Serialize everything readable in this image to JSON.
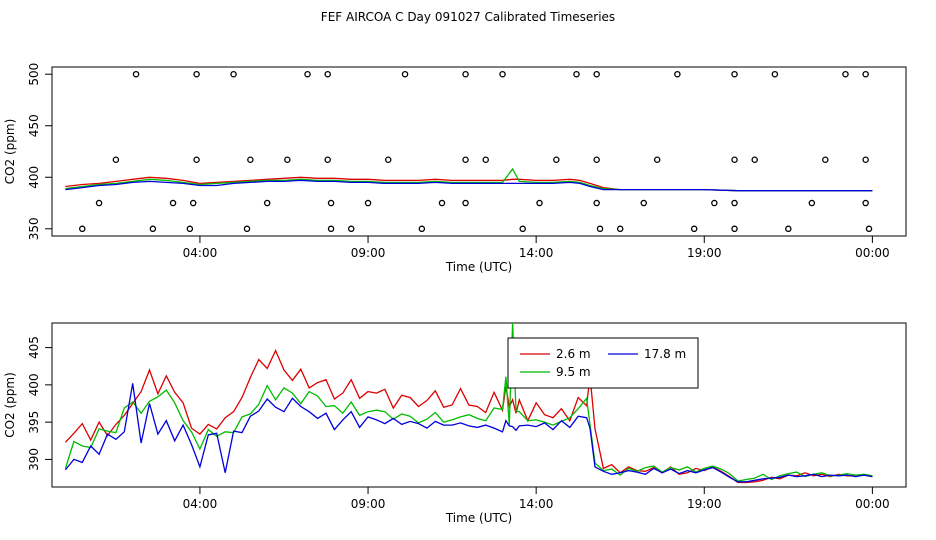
{
  "title": "FEF AIRCOA C  Day 091027  Calibrated Timeseries",
  "colors": {
    "s1": "#dd0000",
    "s2": "#00bb00",
    "s3": "#0000dd",
    "axis": "#000000"
  },
  "chart_data": [
    {
      "type": "line+scatter",
      "xlabel": "Time (UTC)",
      "ylabel": "CO2 (ppm)",
      "xticks": [
        {
          "t": 4,
          "label": "04:00"
        },
        {
          "t": 9,
          "label": "09:00"
        },
        {
          "t": 14,
          "label": "14:00"
        },
        {
          "t": 19,
          "label": "19:00"
        },
        {
          "t": 24,
          "label": "00:00"
        }
      ],
      "yticks": [
        350,
        400,
        450,
        500
      ],
      "ylim": [
        343,
        507
      ],
      "xlim": [
        -0.4,
        25.0
      ],
      "series": [
        {
          "color_key": "s1",
          "x": [
            0,
            0.5,
            1,
            1.5,
            2,
            2.5,
            3,
            3.5,
            4,
            4.5,
            5,
            5.5,
            6,
            6.5,
            7,
            7.5,
            8,
            8.5,
            9,
            9.5,
            10,
            10.5,
            11,
            11.5,
            12,
            12.5,
            13,
            13.3,
            13.5,
            14,
            14.5,
            15,
            15.3,
            15.6,
            16,
            16.5,
            17,
            18,
            19,
            20,
            21,
            22,
            23,
            24
          ],
          "y": [
            391,
            393,
            394,
            396,
            398,
            400,
            399,
            397,
            394,
            395,
            396,
            397,
            398,
            399,
            400,
            399,
            399,
            398,
            398,
            397,
            397,
            397,
            398,
            397,
            397,
            397,
            397,
            398,
            398,
            397,
            397,
            398,
            397,
            394,
            390,
            388,
            388,
            388,
            388,
            387,
            387,
            387,
            387,
            387
          ]
        },
        {
          "color_key": "s2",
          "x": [
            0,
            0.5,
            1,
            1.5,
            2,
            2.5,
            3,
            3.5,
            4,
            4.5,
            5,
            5.5,
            6,
            6.5,
            7,
            7.5,
            8,
            8.5,
            9,
            9.5,
            10,
            10.5,
            11,
            11.5,
            12,
            12.5,
            13,
            13.3,
            13.5,
            14,
            14.5,
            15,
            15.3,
            15.6,
            16,
            16.5,
            17,
            18,
            19,
            20,
            21,
            22,
            23,
            24
          ],
          "y": [
            389,
            391,
            393,
            394,
            396,
            398,
            397,
            395,
            393,
            394,
            395,
            396,
            397,
            397,
            398,
            397,
            397,
            396,
            396,
            395,
            395,
            395,
            396,
            395,
            395,
            395,
            395,
            408,
            396,
            395,
            395,
            396,
            395,
            392,
            389,
            388,
            388,
            388,
            388,
            387,
            387,
            387,
            387,
            387
          ]
        },
        {
          "color_key": "s3",
          "x": [
            0,
            0.5,
            1,
            1.5,
            2,
            2.5,
            3,
            3.5,
            4,
            4.5,
            5,
            5.5,
            6,
            6.5,
            7,
            7.5,
            8,
            8.5,
            9,
            9.5,
            10,
            10.5,
            11,
            11.5,
            12,
            12.5,
            13,
            13.3,
            13.5,
            14,
            14.5,
            15,
            15.3,
            15.6,
            16,
            16.5,
            17,
            18,
            19,
            20,
            21,
            22,
            23,
            24
          ],
          "y": [
            388,
            390,
            392,
            393,
            395,
            396,
            395,
            394,
            392,
            392,
            394,
            395,
            396,
            396,
            397,
            396,
            396,
            395,
            395,
            394,
            394,
            394,
            395,
            394,
            394,
            394,
            394,
            394,
            394,
            394,
            394,
            395,
            394,
            391,
            388,
            388,
            388,
            388,
            388,
            387,
            387,
            387,
            387,
            387
          ]
        }
      ],
      "points": {
        "x": [
          2.1,
          3.9,
          5.0,
          7.2,
          7.8,
          10.1,
          11.9,
          13.0,
          15.2,
          15.8,
          18.2,
          19.9,
          21.1,
          23.2,
          23.8,
          1.5,
          3.9,
          5.5,
          6.6,
          7.8,
          9.6,
          11.9,
          12.5,
          14.6,
          15.8,
          17.6,
          19.9,
          20.5,
          22.6,
          23.8,
          1.0,
          3.2,
          3.8,
          6.0,
          7.9,
          9.0,
          11.2,
          11.9,
          14.1,
          15.8,
          17.2,
          19.3,
          19.9,
          22.2,
          23.8,
          0.5,
          2.6,
          3.7,
          5.4,
          7.9,
          8.5,
          10.6,
          13.6,
          15.9,
          16.5,
          18.7,
          19.9,
          21.5,
          23.9
        ],
        "y": [
          500,
          500,
          500,
          500,
          500,
          500,
          500,
          500,
          500,
          500,
          500,
          500,
          500,
          500,
          500,
          417,
          417,
          417,
          417,
          417,
          417,
          417,
          417,
          417,
          417,
          417,
          417,
          417,
          417,
          417,
          375,
          375,
          375,
          375,
          375,
          375,
          375,
          375,
          375,
          375,
          375,
          375,
          375,
          375,
          375,
          350,
          350,
          350,
          350,
          350,
          350,
          350,
          350,
          350,
          350,
          350,
          350,
          350,
          350
        ]
      }
    },
    {
      "type": "line",
      "xlabel": "Time (UTC)",
      "ylabel": "CO2 (ppm)",
      "xticks": [
        {
          "t": 4,
          "label": "04:00"
        },
        {
          "t": 9,
          "label": "09:00"
        },
        {
          "t": 14,
          "label": "14:00"
        },
        {
          "t": 19,
          "label": "19:00"
        },
        {
          "t": 24,
          "label": "00:00"
        }
      ],
      "yticks": [
        390,
        395,
        400,
        405
      ],
      "ylim": [
        386.3,
        408.3
      ],
      "xlim": [
        -0.4,
        25.0
      ],
      "legend": {
        "placement": "top-right-center",
        "entries": [
          {
            "label": "2.6 m",
            "color_key": "s1"
          },
          {
            "label": "9.5 m",
            "color_key": "s2"
          },
          {
            "label": "17.8 m",
            "color_key": "s3"
          }
        ]
      },
      "series": [
        {
          "name": "2.6 m",
          "color_key": "s1",
          "x": [
            0,
            0.25,
            0.5,
            0.75,
            1,
            1.25,
            1.5,
            1.75,
            2,
            2.25,
            2.5,
            2.75,
            3,
            3.25,
            3.5,
            3.75,
            4,
            4.25,
            4.5,
            4.75,
            5,
            5.25,
            5.5,
            5.75,
            6,
            6.25,
            6.5,
            6.75,
            7,
            7.25,
            7.5,
            7.75,
            8,
            8.25,
            8.5,
            8.75,
            9,
            9.25,
            9.5,
            9.75,
            10,
            10.25,
            10.5,
            10.75,
            11,
            11.25,
            11.5,
            11.75,
            12,
            12.25,
            12.5,
            12.75,
            13,
            13.1,
            13.2,
            13.3,
            13.4,
            13.5,
            13.75,
            14,
            14.25,
            14.5,
            14.75,
            15,
            15.25,
            15.5,
            15.6,
            15.75,
            16,
            16.25,
            16.5,
            16.75,
            17,
            17.25,
            17.5,
            17.75,
            18,
            18.25,
            18.5,
            18.75,
            19,
            19.25,
            19.5,
            19.75,
            20,
            20.25,
            20.5,
            20.75,
            21,
            21.25,
            21.5,
            21.75,
            22,
            22.25,
            22.5,
            22.75,
            23,
            23.25,
            23.5,
            23.75,
            24
          ],
          "y": [
            392.3,
            393.5,
            394.8,
            392.6,
            395.0,
            393.2,
            394.7,
            395.9,
            397.5,
            399.1,
            402.0,
            398.8,
            401.2,
            399.0,
            397.6,
            394.2,
            393.4,
            394.7,
            394.1,
            395.6,
            396.4,
            398.3,
            401.0,
            403.4,
            402.2,
            404.6,
            402.0,
            400.6,
            402.1,
            399.6,
            400.3,
            400.7,
            398.1,
            398.9,
            400.7,
            398.2,
            399.1,
            398.9,
            399.4,
            396.9,
            398.6,
            398.3,
            397.1,
            397.9,
            399.2,
            397.0,
            397.3,
            399.5,
            397.3,
            397.1,
            396.3,
            399.0,
            396.6,
            399.8,
            397.1,
            398.0,
            396.2,
            398.0,
            395.2,
            397.6,
            396.0,
            395.6,
            396.8,
            395.2,
            398.3,
            397.2,
            401.2,
            394.1,
            388.8,
            389.3,
            388.2,
            389.0,
            388.5,
            388.4,
            388.9,
            388.2,
            389.0,
            388.0,
            388.2,
            388.8,
            388.5,
            389.0,
            388.4,
            387.7,
            386.9,
            386.9,
            387.0,
            387.2,
            387.6,
            387.4,
            387.9,
            387.8,
            388.2,
            387.8,
            388.0,
            387.7,
            388.0,
            387.8,
            387.8,
            387.9,
            387.7
          ]
        },
        {
          "name": "9.5 m",
          "color_key": "s2",
          "x": [
            0,
            0.25,
            0.5,
            0.75,
            1,
            1.25,
            1.5,
            1.75,
            2,
            2.25,
            2.5,
            2.75,
            3,
            3.25,
            3.5,
            3.75,
            4,
            4.25,
            4.5,
            4.75,
            5,
            5.25,
            5.5,
            5.75,
            6,
            6.25,
            6.5,
            6.75,
            7,
            7.25,
            7.5,
            7.75,
            8,
            8.25,
            8.5,
            8.75,
            9,
            9.25,
            9.5,
            9.75,
            10,
            10.25,
            10.5,
            10.75,
            11,
            11.25,
            11.5,
            11.75,
            12,
            12.25,
            12.5,
            12.75,
            13,
            13.1,
            13.2,
            13.3,
            13.4,
            13.5,
            13.75,
            14,
            14.25,
            14.5,
            14.75,
            15,
            15.25,
            15.5,
            15.6,
            15.75,
            16,
            16.25,
            16.5,
            16.75,
            17,
            17.25,
            17.5,
            17.75,
            18,
            18.25,
            18.5,
            18.75,
            19,
            19.25,
            19.5,
            19.75,
            20,
            20.25,
            20.5,
            20.75,
            21,
            21.25,
            21.5,
            21.75,
            22,
            22.25,
            22.5,
            22.75,
            23,
            23.25,
            23.5,
            23.75,
            24
          ],
          "y": [
            388.8,
            392.4,
            391.8,
            391.6,
            394.1,
            393.8,
            393.6,
            396.9,
            397.7,
            396.2,
            397.8,
            398.4,
            399.3,
            397.6,
            395.2,
            393.7,
            391.4,
            394.0,
            393.1,
            393.7,
            393.6,
            395.7,
            396.1,
            397.4,
            399.9,
            398.0,
            399.6,
            398.9,
            397.5,
            399.1,
            398.5,
            397.1,
            397.2,
            396.2,
            397.7,
            395.9,
            396.4,
            396.6,
            396.4,
            395.4,
            396.1,
            395.8,
            394.9,
            395.4,
            396.3,
            395.0,
            395.3,
            395.7,
            396.0,
            395.5,
            395.2,
            396.9,
            396.7,
            401.1,
            394.6,
            408.3,
            396.5,
            396.4,
            395.2,
            395.3,
            395.0,
            394.6,
            395.1,
            395.6,
            396.8,
            398.2,
            394.7,
            389.5,
            388.5,
            388.7,
            387.9,
            388.8,
            388.4,
            388.9,
            389.1,
            388.3,
            388.9,
            388.6,
            389.0,
            388.3,
            388.8,
            389.1,
            388.7,
            388.1,
            387.1,
            387.3,
            387.5,
            388.0,
            387.3,
            387.8,
            388.1,
            388.3,
            387.7,
            388.0,
            388.2,
            387.8,
            387.9,
            388.1,
            387.9,
            388.0,
            387.8
          ]
        },
        {
          "name": "17.8 m",
          "color_key": "s3",
          "x": [
            0,
            0.25,
            0.5,
            0.75,
            1,
            1.25,
            1.5,
            1.75,
            2,
            2.25,
            2.5,
            2.75,
            3,
            3.25,
            3.5,
            3.75,
            4,
            4.25,
            4.5,
            4.75,
            5,
            5.25,
            5.5,
            5.75,
            6,
            6.25,
            6.5,
            6.75,
            7,
            7.25,
            7.5,
            7.75,
            8,
            8.25,
            8.5,
            8.75,
            9,
            9.25,
            9.5,
            9.75,
            10,
            10.25,
            10.5,
            10.75,
            11,
            11.25,
            11.5,
            11.75,
            12,
            12.25,
            12.5,
            12.75,
            13,
            13.1,
            13.2,
            13.3,
            13.4,
            13.5,
            13.75,
            14,
            14.25,
            14.5,
            14.75,
            15,
            15.25,
            15.5,
            15.6,
            15.75,
            16,
            16.25,
            16.5,
            16.75,
            17,
            17.25,
            17.5,
            17.75,
            18,
            18.25,
            18.5,
            18.75,
            19,
            19.25,
            19.5,
            19.75,
            20,
            20.25,
            20.5,
            20.75,
            21,
            21.25,
            21.5,
            21.75,
            22,
            22.25,
            22.5,
            22.75,
            23,
            23.25,
            23.5,
            23.75,
            24
          ],
          "y": [
            388.6,
            390.0,
            389.6,
            391.8,
            390.7,
            393.4,
            392.7,
            393.7,
            400.2,
            392.2,
            397.5,
            393.4,
            395.2,
            392.5,
            394.6,
            392.0,
            389.0,
            393.3,
            393.5,
            388.2,
            393.8,
            393.6,
            395.8,
            396.5,
            398.1,
            397.0,
            396.4,
            398.2,
            397.1,
            396.4,
            395.5,
            396.2,
            394.0,
            395.3,
            396.4,
            394.3,
            395.7,
            395.3,
            394.8,
            395.5,
            394.7,
            395.1,
            394.8,
            394.2,
            395.1,
            394.6,
            394.6,
            394.9,
            394.5,
            394.3,
            394.6,
            394.2,
            393.7,
            395.2,
            394.5,
            394.4,
            393.9,
            394.5,
            394.6,
            394.4,
            394.9,
            394.0,
            395.2,
            394.3,
            395.8,
            395.6,
            394.2,
            389.0,
            388.4,
            388.0,
            388.2,
            388.5,
            388.3,
            388.0,
            388.8,
            388.2,
            388.7,
            388.1,
            388.5,
            388.2,
            388.6,
            388.9,
            388.3,
            387.6,
            387.0,
            387.0,
            387.2,
            387.4,
            387.5,
            387.6,
            387.9,
            387.7,
            387.8,
            388.0,
            387.7,
            387.9,
            387.8,
            387.9,
            387.7,
            387.9,
            387.7
          ]
        }
      ]
    }
  ]
}
